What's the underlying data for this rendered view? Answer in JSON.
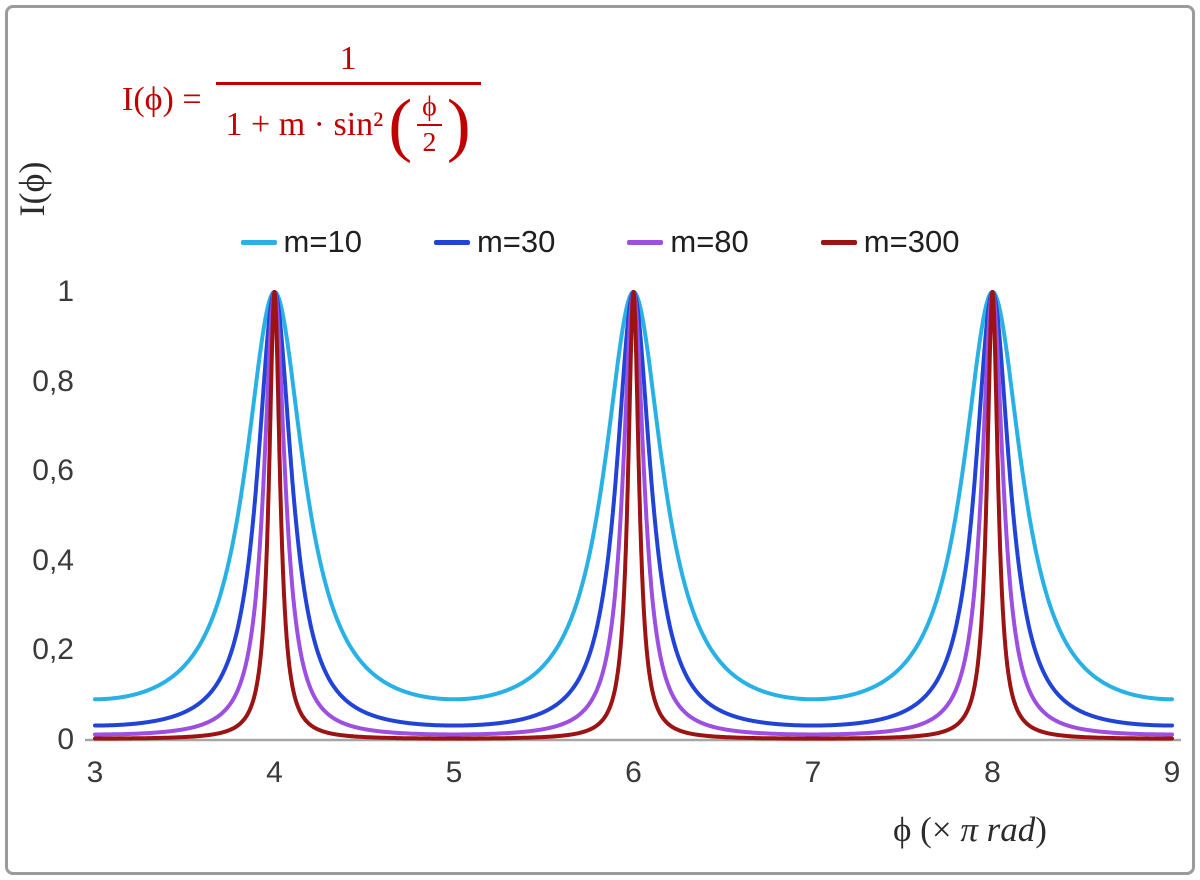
{
  "frame_color": "#9b9b9b",
  "background": "#ffffff",
  "formula": {
    "lhs": "I(ϕ) =",
    "numerator": "1",
    "den_prefix": "1 + m · sin²",
    "paren_open": "(",
    "paren_close": ")",
    "inner_num": "ϕ",
    "inner_den": "2",
    "color": "#c00000"
  },
  "axes": {
    "y_title": "I(ϕ)",
    "x_title_prefix": "ϕ  (×",
    "x_title_italic": "π rad",
    "x_title_suffix": ")"
  },
  "chart_data": {
    "type": "line",
    "function": "I(ϕ) = 1 / (1 + m·sin²(ϕ/2))",
    "x_unit": "× π rad",
    "x_range": [
      3,
      9
    ],
    "y_range": [
      0,
      1
    ],
    "x_ticks": [
      "3",
      "4",
      "5",
      "6",
      "7",
      "8",
      "9"
    ],
    "x_tick_values": [
      3,
      4,
      5,
      6,
      7,
      8,
      9
    ],
    "y_ticks": [
      "0",
      "0,2",
      "0,4",
      "0,6",
      "0,8",
      "1"
    ],
    "y_tick_values": [
      0,
      0.2,
      0.4,
      0.6,
      0.8,
      1
    ],
    "xlabel": "ϕ (× π rad)",
    "ylabel": "I(ϕ)",
    "grid": false,
    "legend_position": "top-center",
    "peaks_at_x": [
      4,
      6,
      8
    ],
    "peak_value": 1,
    "series": [
      {
        "name": "m=10",
        "m": 10,
        "color": "#29b1e6"
      },
      {
        "name": "m=30",
        "m": 30,
        "color": "#2144d6"
      },
      {
        "name": "m=80",
        "m": 80,
        "color": "#9c4fe0"
      },
      {
        "name": "m=300",
        "m": 300,
        "color": "#9c1313"
      }
    ],
    "axis_line_color": "#a6a6a6"
  }
}
